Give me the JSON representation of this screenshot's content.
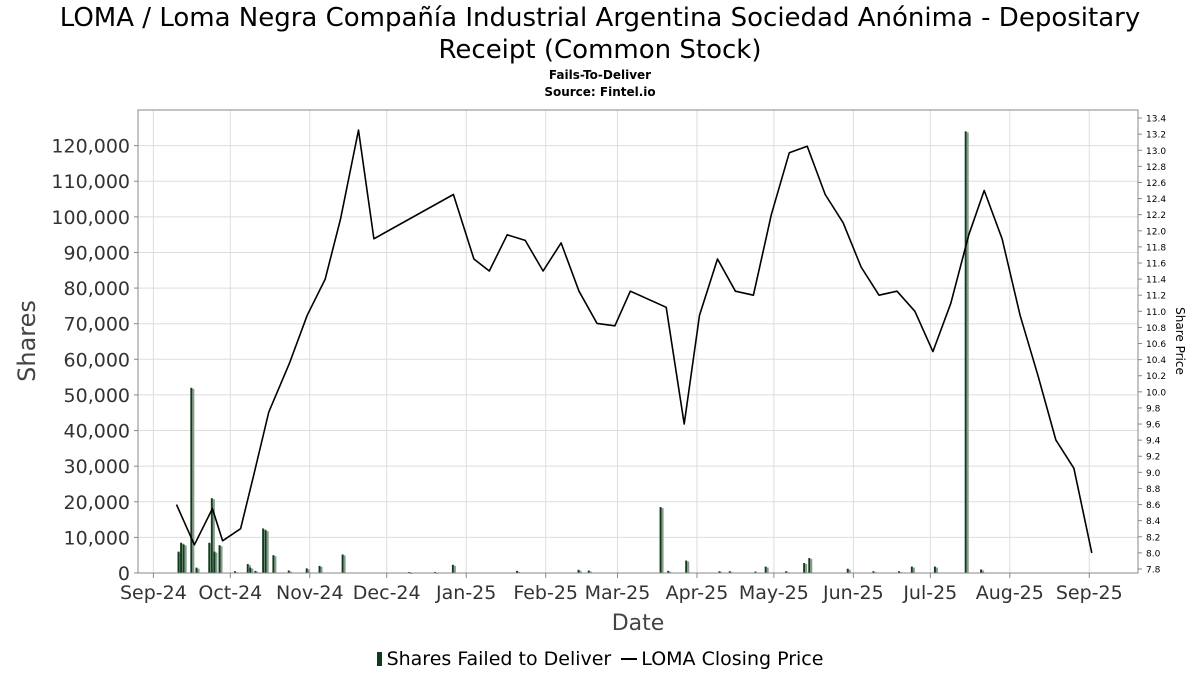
{
  "header": {
    "title_line1": "LOMA / Loma Negra Compañía Industrial Argentina Sociedad Anónima - Depositary",
    "title_line2": "Receipt (Common Stock)",
    "subtitle": "Fails-To-Deliver",
    "source": "Source: Fintel.io"
  },
  "legend": {
    "bars_label": "Shares Failed to Deliver",
    "line_label": "LOMA Closing Price"
  },
  "colors": {
    "bar_dark": "#0d3d1d",
    "bar_light": "#8a9a8c",
    "line": "#000000",
    "grid": "#dddddd"
  },
  "chart_data": {
    "type": "bar+line",
    "xlabel": "Date",
    "ylabel": "Shares",
    "y2label": "Share Price",
    "x_ticks": [
      "Sep-24",
      "Oct-24",
      "Nov-24",
      "Dec-24",
      "Jan-25",
      "Feb-25",
      "Mar-25",
      "Apr-25",
      "May-25",
      "Jun-25",
      "Jul-25",
      "Aug-25",
      "Sep-25"
    ],
    "ylim": [
      0,
      130000
    ],
    "y_ticks": [
      0,
      10000,
      20000,
      30000,
      40000,
      50000,
      60000,
      70000,
      80000,
      90000,
      100000,
      110000,
      120000
    ],
    "y_tick_labels": [
      "0",
      "10,000",
      "20,000",
      "30,000",
      "40,000",
      "50,000",
      "60,000",
      "70,000",
      "80,000",
      "90,000",
      "100,000",
      "110,000",
      "120,000"
    ],
    "y2lim": [
      7.75,
      13.5
    ],
    "y2_ticks": [
      "7.8",
      "8.0",
      "8.2",
      "8.4",
      "8.6",
      "8.8",
      "9.0",
      "9.2",
      "9.4",
      "9.6",
      "9.8",
      "10.0",
      "10.2",
      "10.4",
      "10.6",
      "10.8",
      "11.0",
      "11.2",
      "11.4",
      "11.6",
      "11.8",
      "12.0",
      "12.2",
      "12.4",
      "12.6",
      "12.8",
      "13.0",
      "13.2",
      "13.4"
    ],
    "grid": true,
    "legend_position": "bottom",
    "bars": {
      "name": "Shares Failed to Deliver",
      "points": [
        {
          "date": "2024-09-11",
          "value": 6000
        },
        {
          "date": "2024-09-12",
          "value": 8500
        },
        {
          "date": "2024-09-13",
          "value": 8000
        },
        {
          "date": "2024-09-16",
          "value": 52000
        },
        {
          "date": "2024-09-18",
          "value": 1500
        },
        {
          "date": "2024-09-23",
          "value": 8500
        },
        {
          "date": "2024-09-24",
          "value": 21000
        },
        {
          "date": "2024-09-25",
          "value": 6000
        },
        {
          "date": "2024-09-27",
          "value": 7800
        },
        {
          "date": "2024-10-03",
          "value": 500
        },
        {
          "date": "2024-10-08",
          "value": 2500
        },
        {
          "date": "2024-10-09",
          "value": 1500
        },
        {
          "date": "2024-10-11",
          "value": 600
        },
        {
          "date": "2024-10-14",
          "value": 12500
        },
        {
          "date": "2024-10-15",
          "value": 12000
        },
        {
          "date": "2024-10-18",
          "value": 5000
        },
        {
          "date": "2024-10-24",
          "value": 700
        },
        {
          "date": "2024-10-31",
          "value": 1300
        },
        {
          "date": "2024-11-05",
          "value": 2000
        },
        {
          "date": "2024-11-14",
          "value": 5200
        },
        {
          "date": "2024-12-10",
          "value": 200
        },
        {
          "date": "2024-12-20",
          "value": 300
        },
        {
          "date": "2024-12-27",
          "value": 2300
        },
        {
          "date": "2025-01-21",
          "value": 600
        },
        {
          "date": "2025-02-14",
          "value": 900
        },
        {
          "date": "2025-02-18",
          "value": 700
        },
        {
          "date": "2025-03-18",
          "value": 18500
        },
        {
          "date": "2025-03-21",
          "value": 600
        },
        {
          "date": "2025-03-28",
          "value": 3500
        },
        {
          "date": "2025-04-10",
          "value": 500
        },
        {
          "date": "2025-04-14",
          "value": 500
        },
        {
          "date": "2025-04-24",
          "value": 400
        },
        {
          "date": "2025-04-28",
          "value": 1800
        },
        {
          "date": "2025-05-06",
          "value": 500
        },
        {
          "date": "2025-05-13",
          "value": 2800
        },
        {
          "date": "2025-05-15",
          "value": 4200
        },
        {
          "date": "2025-05-30",
          "value": 1200
        },
        {
          "date": "2025-06-09",
          "value": 500
        },
        {
          "date": "2025-06-19",
          "value": 500
        },
        {
          "date": "2025-06-24",
          "value": 1800
        },
        {
          "date": "2025-07-03",
          "value": 1800
        },
        {
          "date": "2025-07-15",
          "value": 124000
        },
        {
          "date": "2025-07-21",
          "value": 1000
        }
      ]
    },
    "line": {
      "name": "LOMA Closing Price",
      "points": [
        {
          "date": "2024-09-10",
          "value": 8.6
        },
        {
          "date": "2024-09-17",
          "value": 8.1
        },
        {
          "date": "2024-09-24",
          "value": 8.55
        },
        {
          "date": "2024-09-28",
          "value": 8.15
        },
        {
          "date": "2024-10-05",
          "value": 8.3
        },
        {
          "date": "2024-10-10",
          "value": 8.95
        },
        {
          "date": "2024-10-16",
          "value": 9.75
        },
        {
          "date": "2024-10-24",
          "value": 10.35
        },
        {
          "date": "2024-10-31",
          "value": 10.95
        },
        {
          "date": "2024-11-07",
          "value": 11.4
        },
        {
          "date": "2024-11-13",
          "value": 12.15
        },
        {
          "date": "2024-11-20",
          "value": 13.25
        },
        {
          "date": "2024-11-26",
          "value": 11.9
        },
        {
          "date": "2024-12-27",
          "value": 12.45
        },
        {
          "date": "2025-01-04",
          "value": 11.65
        },
        {
          "date": "2025-01-10",
          "value": 11.5
        },
        {
          "date": "2025-01-17",
          "value": 11.95
        },
        {
          "date": "2025-01-24",
          "value": 11.88
        },
        {
          "date": "2025-01-31",
          "value": 11.5
        },
        {
          "date": "2025-02-07",
          "value": 11.85
        },
        {
          "date": "2025-02-14",
          "value": 11.25
        },
        {
          "date": "2025-02-21",
          "value": 10.85
        },
        {
          "date": "2025-02-28",
          "value": 10.82
        },
        {
          "date": "2025-03-06",
          "value": 11.25
        },
        {
          "date": "2025-03-20",
          "value": 11.05
        },
        {
          "date": "2025-03-27",
          "value": 9.6
        },
        {
          "date": "2025-04-02",
          "value": 10.95
        },
        {
          "date": "2025-04-09",
          "value": 11.65
        },
        {
          "date": "2025-04-16",
          "value": 11.25
        },
        {
          "date": "2025-04-23",
          "value": 11.2
        },
        {
          "date": "2025-04-30",
          "value": 12.2
        },
        {
          "date": "2025-05-07",
          "value": 12.97
        },
        {
          "date": "2025-05-14",
          "value": 13.05
        },
        {
          "date": "2025-05-21",
          "value": 12.45
        },
        {
          "date": "2025-05-28",
          "value": 12.1
        },
        {
          "date": "2025-06-04",
          "value": 11.55
        },
        {
          "date": "2025-06-11",
          "value": 11.2
        },
        {
          "date": "2025-06-18",
          "value": 11.25
        },
        {
          "date": "2025-06-25",
          "value": 11.0
        },
        {
          "date": "2025-07-02",
          "value": 10.5
        },
        {
          "date": "2025-07-09",
          "value": 11.1
        },
        {
          "date": "2025-07-16",
          "value": 11.95
        },
        {
          "date": "2025-07-22",
          "value": 12.5
        },
        {
          "date": "2025-07-29",
          "value": 11.9
        },
        {
          "date": "2025-08-05",
          "value": 10.95
        },
        {
          "date": "2025-08-12",
          "value": 10.2
        },
        {
          "date": "2025-08-19",
          "value": 9.4
        },
        {
          "date": "2025-08-26",
          "value": 9.05
        },
        {
          "date": "2025-09-02",
          "value": 8.0
        }
      ]
    }
  }
}
